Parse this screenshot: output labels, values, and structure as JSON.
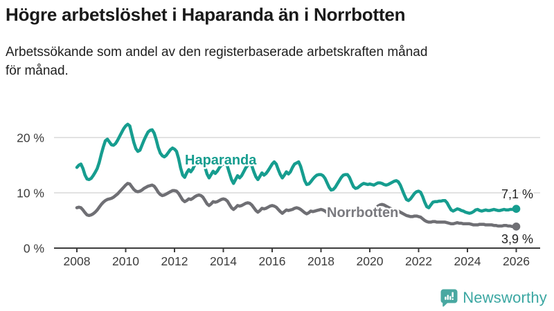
{
  "header": {
    "title": "Högre arbetslöshet i Haparanda än i Norrbotten",
    "subtitle_line1": "Arbetssökande som andel av den registerbaserade arbetskraften månad",
    "subtitle_line2": "för månad."
  },
  "branding": {
    "wordmark": "Newsworthy",
    "brand_color": "#3ba7a2",
    "icon": "bar-chart-speech-bubble"
  },
  "chart_data": {
    "type": "line",
    "title": "Högre arbetslöshet i Haparanda än i Norrbotten",
    "subtitle": "Arbetssökande som andel av den registerbaserade arbetskraften månad för månad.",
    "x_unit": "month",
    "x_start": "2008-01",
    "x_end": "2026-01",
    "x_interval_months": 1,
    "x_tick_labels": [
      "2008",
      "2010",
      "2012",
      "2014",
      "2016",
      "2018",
      "2020",
      "2022",
      "2024",
      "2026"
    ],
    "y_ticks": [
      {
        "value": 0,
        "label": "0 %"
      },
      {
        "value": 10,
        "label": "10 %"
      },
      {
        "value": 20,
        "label": "20 %"
      }
    ],
    "ylim": [
      0,
      24
    ],
    "grid": "horizontal",
    "legend_position": "inline-labels",
    "colors": {
      "grid": "#d9d9d9",
      "axis": "#3c3c3c"
    },
    "series": [
      {
        "name": "Haparanda",
        "color": "#169d8f",
        "label_color": "#169d8f",
        "end_label": "7,1 %",
        "end_value": 7.1,
        "values": [
          14.6,
          15,
          15.2,
          14.4,
          13.2,
          12.5,
          12.4,
          12.6,
          13.1,
          13.7,
          14.4,
          15.5,
          17,
          18.3,
          19.4,
          19.7,
          19.2,
          18.7,
          18.6,
          18.9,
          19.5,
          20.2,
          20.9,
          21.6,
          22.1,
          22.4,
          22.1,
          20.6,
          19.1,
          18,
          17.5,
          17.7,
          18.6,
          19.5,
          20.3,
          21,
          21.3,
          21.4,
          20.8,
          19.6,
          18.2,
          17.2,
          16.7,
          16.5,
          16.8,
          17.3,
          17.8,
          18.1,
          17.9,
          17.5,
          16.2,
          14.5,
          13.2,
          12.8,
          13.6,
          14.2,
          13.8,
          14.3,
          15.1,
          15.9,
          16.2,
          16.4,
          15.8,
          14.6,
          13.4,
          12.7,
          13.3,
          13.9,
          13.5,
          13.9,
          14.5,
          15,
          15.2,
          15.4,
          14.8,
          13.6,
          12.4,
          11.7,
          12.4,
          13.1,
          12.7,
          13.1,
          13.8,
          14.5,
          15,
          15.3,
          14.9,
          13.8,
          12.9,
          12.4,
          13,
          13.6,
          13.2,
          13.5,
          14,
          14.6,
          15.2,
          15.6,
          15.2,
          14.2,
          13.3,
          12.7,
          13.2,
          13.8,
          13.4,
          13.8,
          14.6,
          15.2,
          15.4,
          15.6,
          14.8,
          13.5,
          12.2,
          11.5,
          11.6,
          12,
          12.5,
          12.9,
          13.2,
          13.3,
          13.3,
          13.1,
          12.6,
          11.8,
          11,
          10.5,
          10.6,
          11,
          11.6,
          12.2,
          12.8,
          13.2,
          13.3,
          13.3,
          12.8,
          11.9,
          11.1,
          10.8,
          10.9,
          11.2,
          11.5,
          11.7,
          11.6,
          11.5,
          11.6,
          11.5,
          11.4,
          11.6,
          11.8,
          11.8,
          11.7,
          11.5,
          11.4,
          11.5,
          11.7,
          11.9,
          12.1,
          12.2,
          12,
          11.4,
          10.5,
          9.6,
          8.8,
          8.6,
          8.9,
          9.4,
          9.9,
          10.2,
          10.3,
          10.1,
          9.3,
          8.3,
          7.5,
          7.3,
          7.8,
          8.3,
          8.4,
          8.4,
          8.5,
          8.5,
          8.6,
          8.6,
          8.2,
          7.5,
          6.9,
          6.7,
          6.9,
          7.1,
          7,
          6.8,
          6.7,
          6.5,
          6.4,
          6.3,
          6.4,
          6.6,
          6.9,
          7,
          6.8,
          6.7,
          6.8,
          6.9,
          6.8,
          6.8,
          6.9,
          7,
          6.9,
          6.8,
          6.8,
          6.9,
          7,
          6.9,
          6.9,
          7,
          7,
          7,
          7.1
        ]
      },
      {
        "name": "Norrbotten",
        "color": "#6f6f74",
        "label_color": "#7a7a7f",
        "end_label": "3,9 %",
        "end_value": 3.9,
        "values": [
          7.3,
          7.4,
          7.3,
          6.9,
          6.4,
          6,
          5.9,
          6,
          6.2,
          6.5,
          6.9,
          7.4,
          7.9,
          8.3,
          8.6,
          8.8,
          8.9,
          9,
          9.2,
          9.5,
          9.8,
          10.2,
          10.6,
          11,
          11.4,
          11.7,
          11.6,
          11.1,
          10.6,
          10.3,
          10.2,
          10.3,
          10.5,
          10.8,
          11,
          11.2,
          11.3,
          11.4,
          11.2,
          10.7,
          10.1,
          9.7,
          9.5,
          9.6,
          9.8,
          10,
          10.2,
          10.4,
          10.4,
          10.3,
          9.9,
          9.3,
          8.7,
          8.4,
          8.6,
          8.9,
          8.8,
          9,
          9.3,
          9.5,
          9.6,
          9.5,
          9.2,
          8.6,
          8,
          7.7,
          8,
          8.4,
          8.3,
          8.4,
          8.6,
          8.8,
          8.9,
          8.8,
          8.5,
          7.9,
          7.3,
          7,
          7.3,
          7.7,
          7.6,
          7.7,
          7.9,
          8.1,
          8.2,
          8.1,
          7.8,
          7.3,
          6.8,
          6.5,
          6.8,
          7.2,
          7.1,
          7.2,
          7.4,
          7.6,
          7.7,
          7.6,
          7.4,
          7,
          6.6,
          6.3,
          6.6,
          6.9,
          6.8,
          6.9,
          7,
          7.2,
          7.3,
          7.2,
          7,
          6.7,
          6.4,
          6.2,
          6.4,
          6.7,
          6.6,
          6.7,
          6.8,
          6.9,
          7,
          6.9,
          6.7,
          6.4,
          6.1,
          5.9,
          6.1,
          6.4,
          6.3,
          6.4,
          6.5,
          6.6,
          6.7,
          6.6,
          6.5,
          6.3,
          6.1,
          6,
          6.1,
          6.3,
          6.3,
          6.4,
          6.4,
          6.5,
          6.6,
          6.6,
          6.7,
          7.2,
          7.6,
          7.8,
          7.9,
          7.8,
          7.6,
          7.4,
          7.2,
          7,
          6.9,
          6.8,
          6.7,
          6.5,
          6.3,
          6.1,
          5.9,
          5.8,
          5.7,
          5.7,
          5.8,
          5.8,
          5.7,
          5.6,
          5.3,
          5,
          4.8,
          4.7,
          4.7,
          4.8,
          4.8,
          4.7,
          4.7,
          4.7,
          4.7,
          4.7,
          4.6,
          4.5,
          4.4,
          4.4,
          4.5,
          4.6,
          4.5,
          4.5,
          4.4,
          4.4,
          4.4,
          4.4,
          4.3,
          4.2,
          4.2,
          4.2,
          4.3,
          4.3,
          4.3,
          4.2,
          4.2,
          4.2,
          4.2,
          4.1,
          4.1,
          4,
          4,
          4,
          4.1,
          4.1,
          4,
          4,
          3.9,
          3.9,
          3.9
        ]
      }
    ]
  }
}
